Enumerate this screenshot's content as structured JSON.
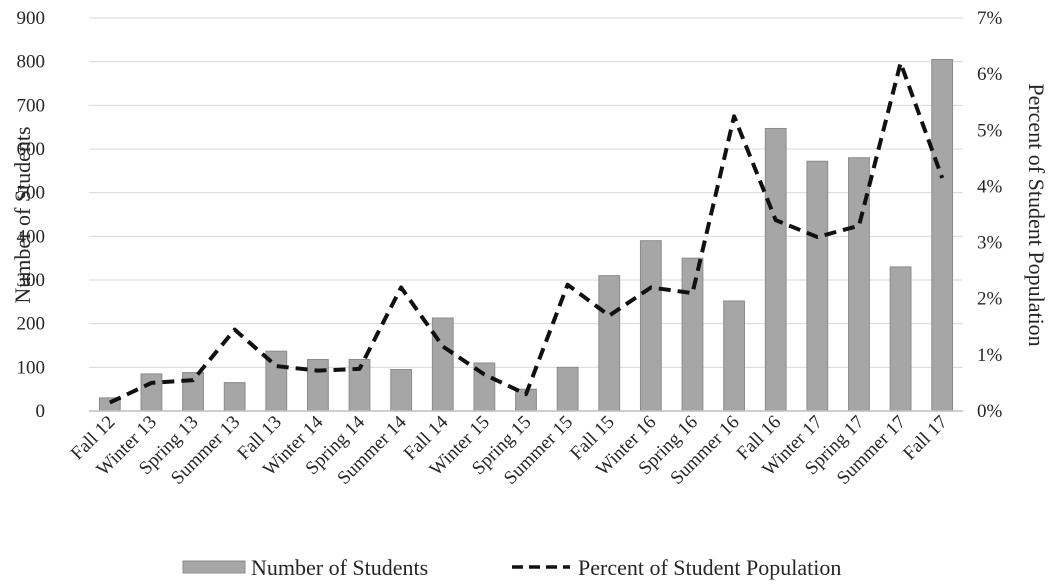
{
  "chart_data": {
    "type": "bar",
    "categories": [
      "Fall 12",
      "Winter 13",
      "Spring 13",
      "Summer 13",
      "Fall 13",
      "Winter 14",
      "Spring 14",
      "Summer 14",
      "Fall 14",
      "Winter 15",
      "Spring 15",
      "Summer 15",
      "Fall 15",
      "Winter 16",
      "Spring 16",
      "Summer 16",
      "Fall 16",
      "Winter 17",
      "Spring 17",
      "Summer 17",
      "Fall 17"
    ],
    "series": [
      {
        "name": "Number of Students",
        "type": "bar",
        "axis": "left",
        "color": "#a6a6a6",
        "values": [
          30,
          85,
          88,
          65,
          137,
          118,
          118,
          95,
          213,
          110,
          50,
          100,
          310,
          390,
          350,
          252,
          647,
          572,
          580,
          330,
          805
        ]
      },
      {
        "name": "Percent of Student Population",
        "type": "line",
        "axis": "right",
        "style": "dashed",
        "color": "#111111",
        "values": [
          0.15,
          0.5,
          0.55,
          1.45,
          0.8,
          0.72,
          0.75,
          2.2,
          1.15,
          0.65,
          0.3,
          2.25,
          1.7,
          2.2,
          2.1,
          5.25,
          3.4,
          3.1,
          3.3,
          6.2,
          4.15
        ]
      }
    ],
    "ylabel": "Number of Students",
    "ylim": [
      0,
      900
    ],
    "yticks": [
      "0",
      "100",
      "200",
      "300",
      "400",
      "500",
      "600",
      "700",
      "800",
      "900"
    ],
    "y2label": "Percent of Student Population",
    "y2lim": [
      0,
      7
    ],
    "y2ticks": [
      "0%",
      "1%",
      "2%",
      "3%",
      "4%",
      "5%",
      "6%",
      "7%"
    ],
    "grid": true,
    "legend_position": "bottom"
  }
}
